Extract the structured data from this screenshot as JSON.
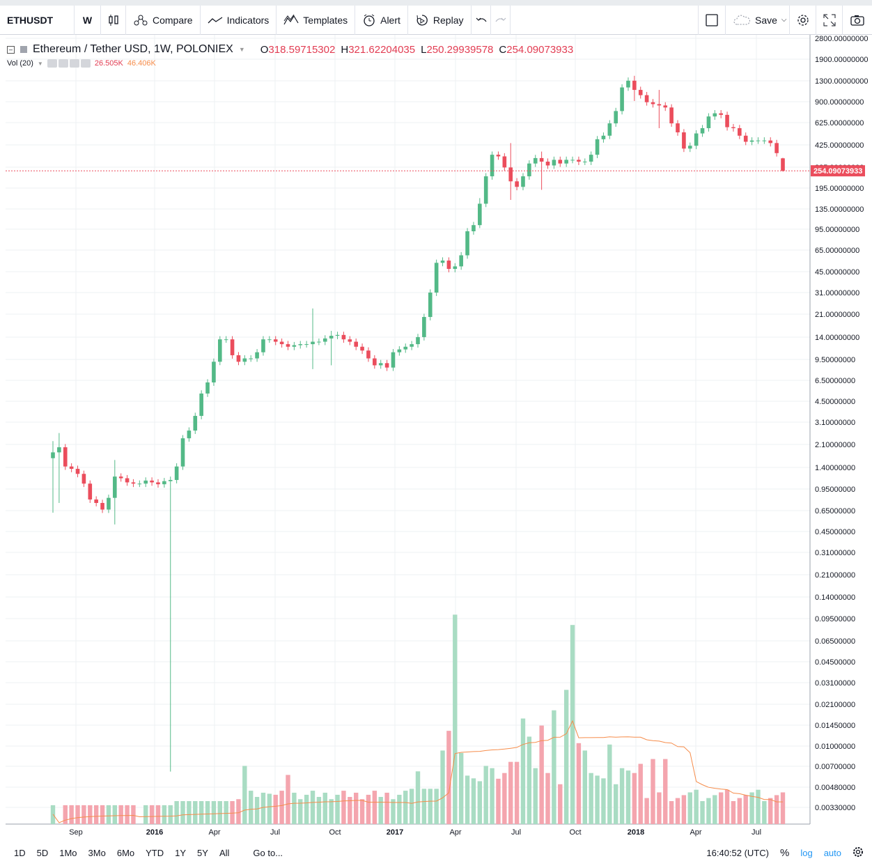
{
  "toolbar": {
    "symbol": "ETHUSDT",
    "interval": "W",
    "compare": "Compare",
    "indicators": "Indicators",
    "templates": "Templates",
    "alert": "Alert",
    "replay": "Replay",
    "save": "Save"
  },
  "legend": {
    "title": "Ethereum / Tether USD, 1W, POLONIEX",
    "o_label": "O",
    "o": "318.59715302",
    "h_label": "H",
    "h": "321.62204035",
    "l_label": "L",
    "l": "250.29939578",
    "c_label": "C",
    "c": "254.09073933"
  },
  "volume_legend": {
    "label": "Vol (20)",
    "v1": "26.505K",
    "v2": "46.406K"
  },
  "bottom": {
    "ranges": [
      "1D",
      "5D",
      "1Mo",
      "3Mo",
      "6Mo",
      "YTD",
      "1Y",
      "5Y",
      "All"
    ],
    "goto": "Go to...",
    "time": "16:40:52 (UTC)",
    "percent": "%",
    "log": "log",
    "auto": "auto"
  },
  "colors": {
    "up": "#53b987",
    "down": "#eb4d5c",
    "vol_up": "#a9dcc3",
    "vol_down": "#f4a5ae",
    "ma": "#f68c4a",
    "grid": "#eef0f3"
  },
  "chart_data": {
    "type": "candlestick",
    "scale": "log",
    "last_price": "254.09073933",
    "y_ticks": [
      "2800.00000000",
      "1900.00000000",
      "1300.00000000",
      "900.00000000",
      "625.00000000",
      "425.00000000",
      "285.00000000",
      "195.00000000",
      "135.00000000",
      "95.00000000",
      "65.00000000",
      "45.00000000",
      "31.00000000",
      "21.00000000",
      "14.00000000",
      "9.50000000",
      "6.50000000",
      "4.50000000",
      "3.10000000",
      "2.10000000",
      "1.40000000",
      "0.95000000",
      "0.65000000",
      "0.45000000",
      "0.31000000",
      "0.21000000",
      "0.14000000",
      "0.09500000",
      "0.06500000",
      "0.04500000",
      "0.03100000",
      "0.02100000",
      "0.01450000",
      "0.01000000",
      "0.00700000",
      "0.00480000",
      "0.00330000"
    ],
    "x_ticks": [
      "Sep",
      "2016",
      "Apr",
      "Jul",
      "Oct",
      "2017",
      "Apr",
      "Jul",
      "Oct",
      "2018",
      "Apr",
      "Jul"
    ],
    "x_bold": [
      "2016",
      "2017",
      "2018"
    ],
    "close_path": [
      1.55,
      1.7,
      1.2,
      1.15,
      1.05,
      0.88,
      0.66,
      0.62,
      0.55,
      0.68,
      1.0,
      0.97,
      0.9,
      0.88,
      0.88,
      0.93,
      0.9,
      0.87,
      0.92,
      0.94,
      1.2,
      2.0,
      2.3,
      3.0,
      4.5,
      5.5,
      8.0,
      12.0,
      12.0,
      9.0,
      8.0,
      8.5,
      8.5,
      9.5,
      12.0,
      12.0,
      11.5,
      11.0,
      10.5,
      10.8,
      11.0,
      11.0,
      11.5,
      11.5,
      12.2,
      12.8,
      13.0,
      12.0,
      11.5,
      10.5,
      9.8,
      8.5,
      7.5,
      7.8,
      7.2,
      9.5,
      10.0,
      10.5,
      11.0,
      12.5,
      18.0,
      28.0,
      48.0,
      50.0,
      43.0,
      45.0,
      55.0,
      85.0,
      95.0,
      140.0,
      230.0,
      340.0,
      330.0,
      270.0,
      210.0,
      190.0,
      230.0,
      290.0,
      320.0,
      300.0,
      280.0,
      310.0,
      290.0,
      310.0,
      310.0,
      300.0,
      300.0,
      340.0,
      450.0,
      480.0,
      600.0,
      750.0,
      1150.0,
      1300.0,
      1100.0,
      1000.0,
      880.0,
      850.0,
      830.0,
      800.0,
      600.0,
      510.0,
      380.0,
      400.0,
      500.0,
      550.0,
      680.0,
      720.0,
      700.0,
      560.0,
      550.0,
      480.0,
      430.0,
      440.0,
      440.0,
      440.0,
      420.0,
      350.0,
      254.0
    ],
    "wicks": [
      {
        "i": 0,
        "low": 0.52,
        "high": 1.9
      },
      {
        "i": 1,
        "low": 0.62,
        "high": 2.2
      },
      {
        "i": 10,
        "low": 0.42,
        "high": 1.35
      },
      {
        "i": 19,
        "low": 0.00478,
        "high": 1.0
      },
      {
        "i": 42,
        "low": 7.0,
        "high": 21.0
      },
      {
        "i": 45,
        "low": 7.5,
        "high": 14.0
      },
      {
        "i": 69,
        "low": 90.0,
        "high": 155.0
      },
      {
        "i": 74,
        "low": 150.0,
        "high": 420.0
      },
      {
        "i": 79,
        "low": 180.0,
        "high": 360.0
      },
      {
        "i": 94,
        "low": 900.0,
        "high": 1420.0
      },
      {
        "i": 98,
        "low": 550.0,
        "high": 1100.0
      },
      {
        "i": 118,
        "low": 250.29939578,
        "high": 321.62204035
      }
    ],
    "volume_peaks": [
      {
        "i": 1,
        "v": 0.0018
      },
      {
        "i": 14,
        "v": 0.0016
      },
      {
        "i": 31,
        "v": 0.0053
      },
      {
        "i": 35,
        "v": 0.0032
      },
      {
        "i": 38,
        "v": 0.0045
      },
      {
        "i": 59,
        "v": 0.0048
      },
      {
        "i": 63,
        "v": 0.007
      },
      {
        "i": 64,
        "v": 0.01
      },
      {
        "i": 65,
        "v": 0.082
      },
      {
        "i": 66,
        "v": 0.0067
      },
      {
        "i": 70,
        "v": 0.0053
      },
      {
        "i": 72,
        "v": 0.0042
      },
      {
        "i": 74,
        "v": 0.0057
      },
      {
        "i": 75,
        "v": 0.0057
      },
      {
        "i": 76,
        "v": 0.0125
      },
      {
        "i": 77,
        "v": 0.009
      },
      {
        "i": 79,
        "v": 0.011
      },
      {
        "i": 81,
        "v": 0.0145
      },
      {
        "i": 82,
        "v": 0.0038
      },
      {
        "i": 83,
        "v": 0.021
      },
      {
        "i": 84,
        "v": 0.068
      },
      {
        "i": 85,
        "v": 0.008
      },
      {
        "i": 86,
        "v": 0.007
      },
      {
        "i": 90,
        "v": 0.0078
      },
      {
        "i": 95,
        "v": 0.0055
      },
      {
        "i": 97,
        "v": 0.006
      },
      {
        "i": 99,
        "v": 0.006
      }
    ]
  }
}
